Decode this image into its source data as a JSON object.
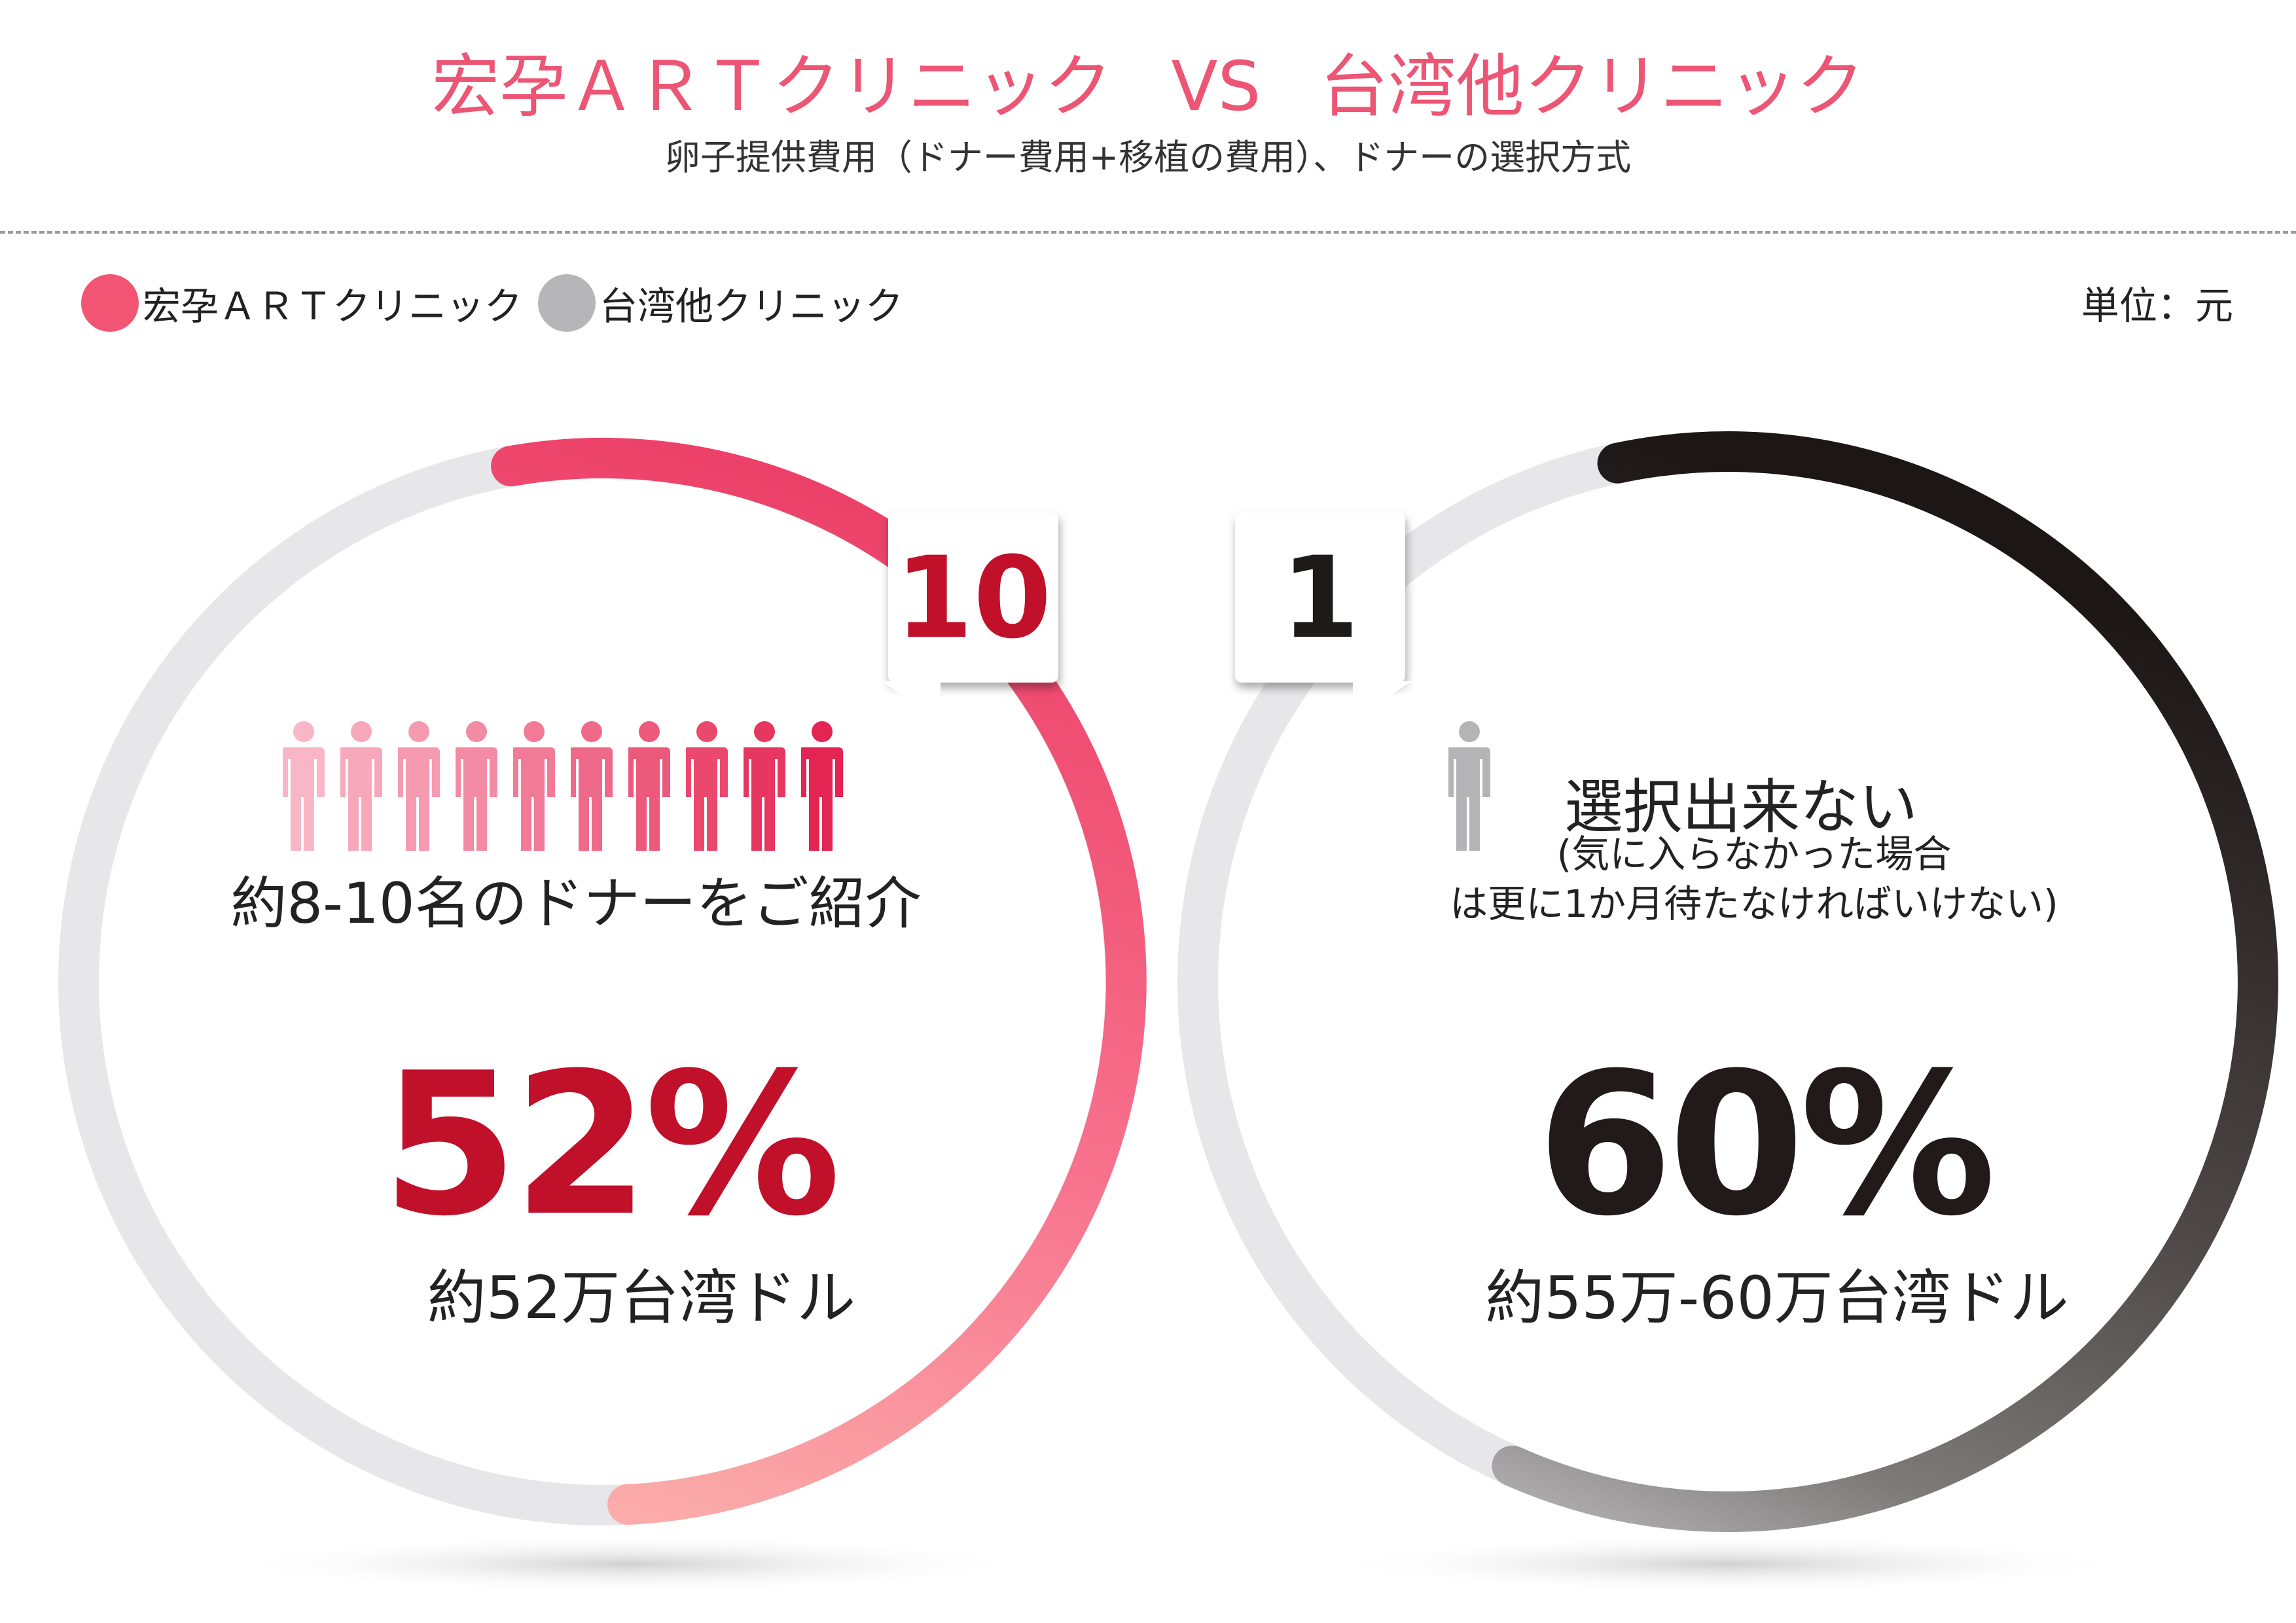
{
  "title": {
    "left_clinic": "宏孕ＡＲＴクリニック",
    "vs": "VS",
    "right_clinic": "台湾他クリニック"
  },
  "subtitle": "卵子提供費用（ドナー費用+移植の費用）、ドナーの選択方式",
  "legend": [
    {
      "label": "宏孕ＡＲＴクリニック",
      "color": "#f25574"
    },
    {
      "label": "台湾他クリニック",
      "color": "#b6b6b8"
    }
  ],
  "unit": "単位：元",
  "colors": {
    "track": "#e7e7e9",
    "pink_start": "#ec3f67",
    "pink_end": "#fbb1ac",
    "dark_start": "#1c1616",
    "dark_mid": "#7e7a7a",
    "dark_end": "#c7c7c9",
    "pct_red": "#c0102a",
    "pct_black": "#221a19"
  },
  "left": {
    "donor_count": "10",
    "people_icons": 10,
    "note": "約8-10名のドナーをご紹介",
    "percent_value": 52,
    "percent_text": "52%",
    "amount": "約52万台湾ドル"
  },
  "right": {
    "donor_count": "1",
    "people_icons": 1,
    "note_title": "選択出来ない",
    "note_line1": "(気に入らなかった場合",
    "note_line2": "は更に1か月待たなければいけない)",
    "percent_value": 60,
    "percent_text": "60%",
    "amount": "約55万-60万台湾ドル"
  }
}
